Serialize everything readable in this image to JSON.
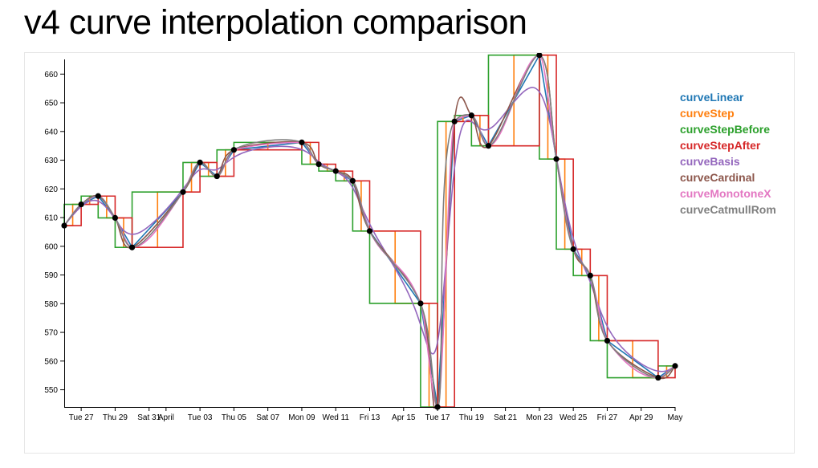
{
  "title": "v4 curve interpolation comparison",
  "colors": {
    "curveLinear": "#1f77b4",
    "curveStep": "#ff7f0e",
    "curveStepBefore": "#2ca02c",
    "curveStepAfter": "#d62728",
    "curveBasis": "#9467bd",
    "curveCardinal": "#8c564b",
    "curveMonotoneX": "#e377c2",
    "curveCatmullRom": "#7f7f7f",
    "points": "#000000"
  },
  "chart_data": {
    "type": "line",
    "title": "v4 curve interpolation comparison",
    "xlabel": "",
    "ylabel": "",
    "x_type": "date",
    "xlim": [
      "2016-03-26",
      "2016-05-01"
    ],
    "ylim": [
      544,
      664
    ],
    "x_ticks": [
      {
        "date": "2016-03-27",
        "label": "Tue 27"
      },
      {
        "date": "2016-03-29",
        "label": "Thu 29"
      },
      {
        "date": "2016-03-31",
        "label": "Sat 31"
      },
      {
        "date": "2016-04-01",
        "label": "April"
      },
      {
        "date": "2016-04-03",
        "label": "Tue 03"
      },
      {
        "date": "2016-04-05",
        "label": "Thu 05"
      },
      {
        "date": "2016-04-07",
        "label": "Sat 07"
      },
      {
        "date": "2016-04-09",
        "label": "Mon 09"
      },
      {
        "date": "2016-04-11",
        "label": "Wed 11"
      },
      {
        "date": "2016-04-13",
        "label": "Fri 13"
      },
      {
        "date": "2016-04-15",
        "label": "Apr 15"
      },
      {
        "date": "2016-04-17",
        "label": "Tue 17"
      },
      {
        "date": "2016-04-19",
        "label": "Thu 19"
      },
      {
        "date": "2016-04-21",
        "label": "Sat 21"
      },
      {
        "date": "2016-04-23",
        "label": "Mon 23"
      },
      {
        "date": "2016-04-25",
        "label": "Wed 25"
      },
      {
        "date": "2016-04-27",
        "label": "Fri 27"
      },
      {
        "date": "2016-04-29",
        "label": "Apr 29"
      },
      {
        "date": "2016-05-01",
        "label": "May"
      }
    ],
    "y_ticks": [
      550,
      560,
      570,
      580,
      590,
      600,
      610,
      620,
      630,
      640,
      650,
      660
    ],
    "grid": false,
    "legend_position": "top-right",
    "series_names": [
      "curveLinear",
      "curveStep",
      "curveStepBefore",
      "curveStepAfter",
      "curveBasis",
      "curveCardinal",
      "curveMonotoneX",
      "curveCatmullRom"
    ],
    "points": [
      {
        "x": "2016-03-26 00:00",
        "y": 607.2
      },
      {
        "x": "2016-03-27 00:00",
        "y": 614.6
      },
      {
        "x": "2016-03-28 00:00",
        "y": 617.5
      },
      {
        "x": "2016-03-29 00:00",
        "y": 609.9
      },
      {
        "x": "2016-03-30 00:00",
        "y": 599.6
      },
      {
        "x": "2016-04-02 00:00",
        "y": 618.9
      },
      {
        "x": "2016-04-03 00:00",
        "y": 629.2
      },
      {
        "x": "2016-04-04 00:00",
        "y": 624.4
      },
      {
        "x": "2016-04-05 00:00",
        "y": 633.6
      },
      {
        "x": "2016-04-09 00:00",
        "y": 636.2
      },
      {
        "x": "2016-04-10 00:00",
        "y": 628.6
      },
      {
        "x": "2016-04-11 00:00",
        "y": 626.2
      },
      {
        "x": "2016-04-12 00:00",
        "y": 622.8
      },
      {
        "x": "2016-04-13 00:00",
        "y": 605.3
      },
      {
        "x": "2016-04-16 00:00",
        "y": 580.1
      },
      {
        "x": "2016-04-17 00:00",
        "y": 544.0
      },
      {
        "x": "2016-04-18 00:00",
        "y": 643.5
      },
      {
        "x": "2016-04-19 00:00",
        "y": 645.6
      },
      {
        "x": "2016-04-20 00:00",
        "y": 635.0
      },
      {
        "x": "2016-04-23 00:00",
        "y": 666.6
      },
      {
        "x": "2016-04-24 00:00",
        "y": 630.4
      },
      {
        "x": "2016-04-25 00:00",
        "y": 599.0
      },
      {
        "x": "2016-04-26 00:00",
        "y": 589.8
      },
      {
        "x": "2016-04-27 00:00",
        "y": 567.1
      },
      {
        "x": "2016-04-30 00:00",
        "y": 554.2
      },
      {
        "x": "2016-05-01 00:00",
        "y": 558.3
      }
    ]
  }
}
